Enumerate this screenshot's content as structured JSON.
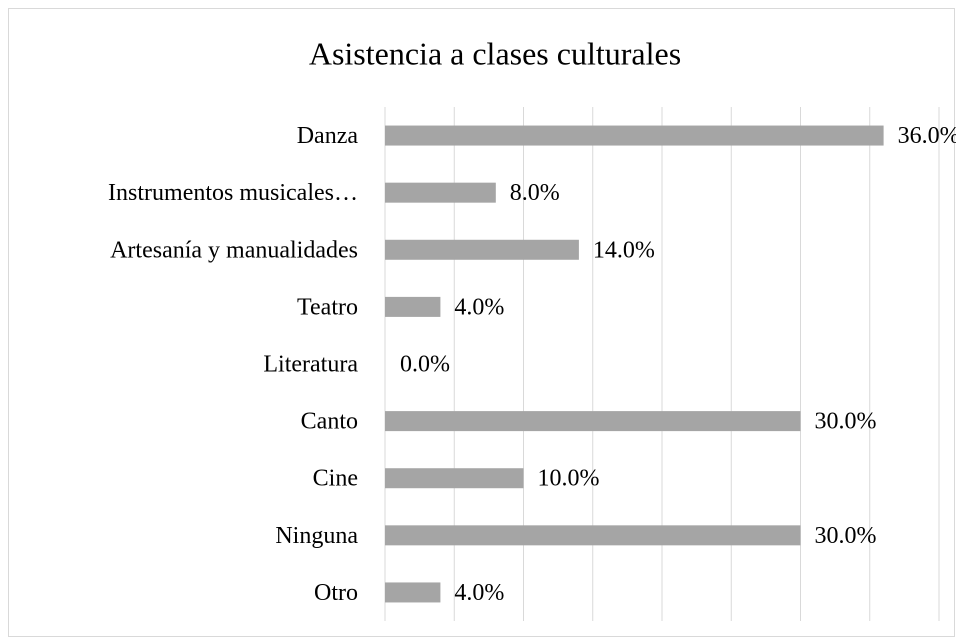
{
  "chart_data": {
    "type": "barh",
    "title": "Asistencia a clases culturales",
    "categories": [
      "Danza",
      "Instrumentos musicales…",
      "Artesanía y manualidades",
      "Teatro",
      "Literatura",
      "Canto",
      "Cine",
      "Ninguna",
      "Otro"
    ],
    "values": [
      36,
      8,
      14,
      4,
      0,
      30,
      10,
      30,
      4
    ],
    "value_labels": [
      "36.0%",
      "8.0%",
      "14.0%",
      "4.0%",
      "0.0%",
      "30.0%",
      "10.0%",
      "30.0%",
      "4.0%"
    ],
    "color": "#a5a5a5",
    "xlim": [
      0,
      40
    ],
    "xticks": [
      0,
      5,
      10,
      15,
      20,
      25,
      30,
      35,
      40
    ],
    "grid": true
  }
}
